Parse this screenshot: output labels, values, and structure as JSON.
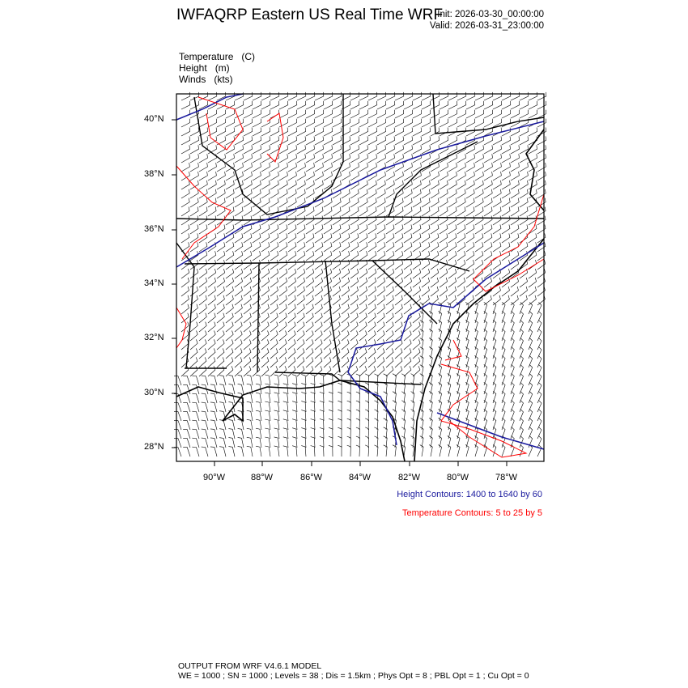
{
  "header": {
    "title": "IWFAQRP Eastern US Real Time WRF",
    "init": "Init: 2026-03-30_00:00:00",
    "valid": "Valid: 2026-03-31_23:00:00"
  },
  "fields": [
    "Temperature   (C)",
    "Height   (m)",
    "Winds   (kts)"
  ],
  "map": {
    "lat_ticks": [
      "40°N",
      "38°N",
      "36°N",
      "34°N",
      "32°N",
      "30°N",
      "28°N"
    ],
    "lon_ticks": [
      "90°W",
      "88°W",
      "86°W",
      "84°W",
      "82°W",
      "80°W",
      "78°W"
    ],
    "height_contour_color": "#1a1a9e",
    "temperature_contour_color": "#ff0000",
    "boundary_color": "#000000"
  },
  "legend": {
    "height": "Height Contours: 1400 to 1640 by 60",
    "temperature": "Temperature Contours: 5 to 25 by 5"
  },
  "footer": {
    "line1": "OUTPUT FROM WRF V4.6.1 MODEL",
    "line2": "WE = 1000 ; SN = 1000 ; Levels = 38 ; Dis = 1.5km ; Phys Opt = 8 ; PBL Opt = 1 ; Cu Opt = 0"
  }
}
